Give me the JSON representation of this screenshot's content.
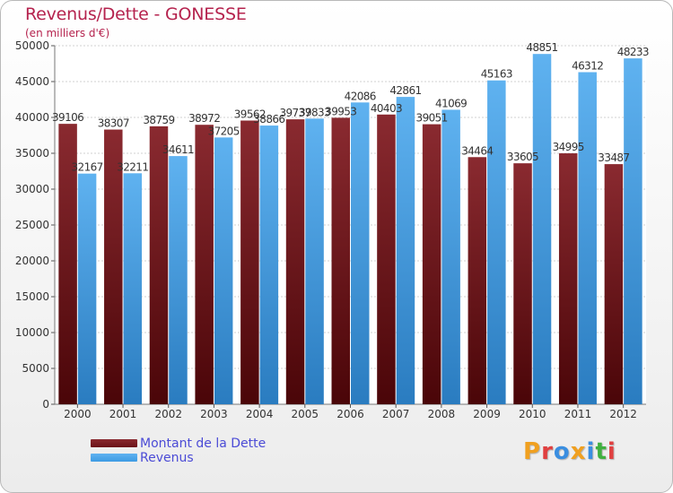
{
  "chart_data": {
    "type": "bar",
    "title": "Revenus/Dette - GONESSE",
    "subtitle": "(en milliers d'€)",
    "categories": [
      "2000",
      "2001",
      "2002",
      "2003",
      "2004",
      "2005",
      "2006",
      "2007",
      "2008",
      "2009",
      "2010",
      "2011",
      "2012"
    ],
    "series": [
      {
        "name": "Montant de la Dette",
        "color": "#6b1218",
        "values": [
          39106,
          38307,
          38759,
          38972,
          39562,
          39737,
          39953,
          40403,
          39051,
          34464,
          33605,
          34995,
          33487
        ],
        "labels": [
          "39106",
          "38307",
          "38759",
          "38972",
          "39562",
          "39737",
          "39953",
          "40403",
          "39051",
          "34464",
          "33605",
          "34995",
          "33487"
        ]
      },
      {
        "name": "Revenus",
        "color": "#3d9be3",
        "values": [
          32167,
          32211,
          34611,
          37205,
          38866,
          39833,
          42086,
          42861,
          41069,
          45163,
          48851,
          46312,
          48233
        ],
        "labels": [
          "32167",
          "32211",
          "34611",
          "37205",
          "38866",
          "39833",
          "42086",
          "42861",
          "41069",
          "45163",
          "48851",
          "46312",
          "48233"
        ]
      }
    ],
    "ylim": [
      0,
      50000
    ],
    "yticks": [
      0,
      5000,
      10000,
      15000,
      20000,
      25000,
      30000,
      35000,
      40000,
      45000,
      50000
    ],
    "ytick_labels": [
      "0",
      "5000",
      "10000",
      "15000",
      "20000",
      "25000",
      "30000",
      "35000",
      "40000",
      "45000",
      "50000"
    ],
    "grid": true,
    "legend_position": "bottom-left"
  },
  "logo": {
    "letters": [
      "P",
      "r",
      "o",
      "x",
      "i",
      "t",
      "i"
    ],
    "colors": [
      "#f0a020",
      "#e04040",
      "#3a8ee0",
      "#f0a020",
      "#3a8ee0",
      "#40b040",
      "#e04040"
    ]
  }
}
